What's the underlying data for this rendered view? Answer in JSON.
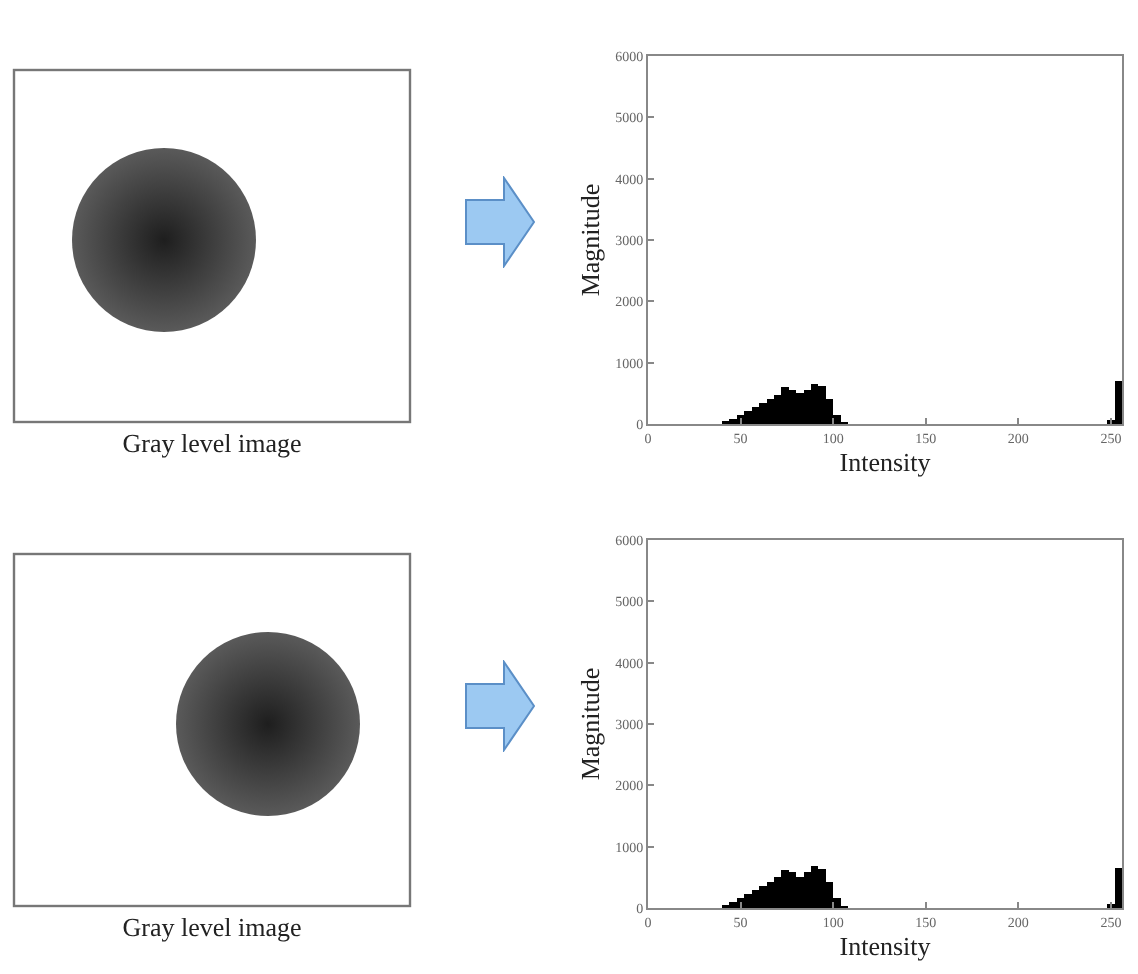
{
  "chart_data": [
    {
      "type": "histogram",
      "xlabel": "Intensity",
      "ylabel": "Magnitude",
      "annotations": [
        "Gray level image"
      ],
      "color": "#000000",
      "xlim": [
        0,
        256
      ],
      "ylim": [
        0,
        6000
      ],
      "xticks": [
        0,
        50,
        100,
        150,
        200,
        250
      ],
      "yticks": [
        0,
        1000,
        2000,
        3000,
        4000,
        5000,
        6000
      ],
      "bins": [
        40,
        44,
        48,
        52,
        56,
        60,
        64,
        68,
        72,
        76,
        80,
        84,
        88,
        92,
        96,
        100,
        104,
        108,
        112,
        116,
        120,
        124,
        128,
        132,
        136,
        140,
        144,
        148,
        152,
        156,
        160,
        164,
        168,
        172,
        176,
        180,
        184,
        188,
        192,
        196,
        200,
        204,
        208,
        212,
        216,
        220,
        224,
        228,
        232,
        236,
        240,
        244,
        248,
        252,
        256
      ],
      "values": [
        50,
        80,
        150,
        220,
        280,
        340,
        400,
        480,
        600,
        560,
        500,
        560,
        650,
        620,
        400,
        150,
        30,
        0,
        0,
        0,
        0,
        0,
        0,
        0,
        0,
        0,
        0,
        0,
        0,
        0,
        0,
        0,
        0,
        0,
        0,
        0,
        0,
        0,
        0,
        0,
        0,
        0,
        0,
        0,
        0,
        0,
        0,
        0,
        0,
        0,
        0,
        0,
        60,
        700
      ]
    },
    {
      "type": "histogram",
      "xlabel": "Intensity",
      "ylabel": "Magnitude",
      "annotations": [
        "Gray level image"
      ],
      "color": "#000000",
      "xlim": [
        0,
        256
      ],
      "ylim": [
        0,
        6000
      ],
      "xticks": [
        0,
        50,
        100,
        150,
        200,
        250
      ],
      "yticks": [
        0,
        1000,
        2000,
        3000,
        4000,
        5000,
        6000
      ],
      "bins": [
        40,
        44,
        48,
        52,
        56,
        60,
        64,
        68,
        72,
        76,
        80,
        84,
        88,
        92,
        96,
        100,
        104,
        108,
        112,
        116,
        120,
        124,
        128,
        132,
        136,
        140,
        144,
        148,
        152,
        156,
        160,
        164,
        168,
        172,
        176,
        180,
        184,
        188,
        192,
        196,
        200,
        204,
        208,
        212,
        216,
        220,
        224,
        228,
        232,
        236,
        240,
        244,
        248,
        252,
        256
      ],
      "values": [
        50,
        90,
        160,
        230,
        300,
        360,
        420,
        500,
        620,
        580,
        500,
        580,
        680,
        640,
        420,
        160,
        30,
        0,
        0,
        0,
        0,
        0,
        0,
        0,
        0,
        0,
        0,
        0,
        0,
        0,
        0,
        0,
        0,
        0,
        0,
        0,
        0,
        0,
        0,
        0,
        0,
        0,
        0,
        0,
        0,
        0,
        0,
        0,
        0,
        0,
        0,
        0,
        60,
        650
      ]
    }
  ]
}
